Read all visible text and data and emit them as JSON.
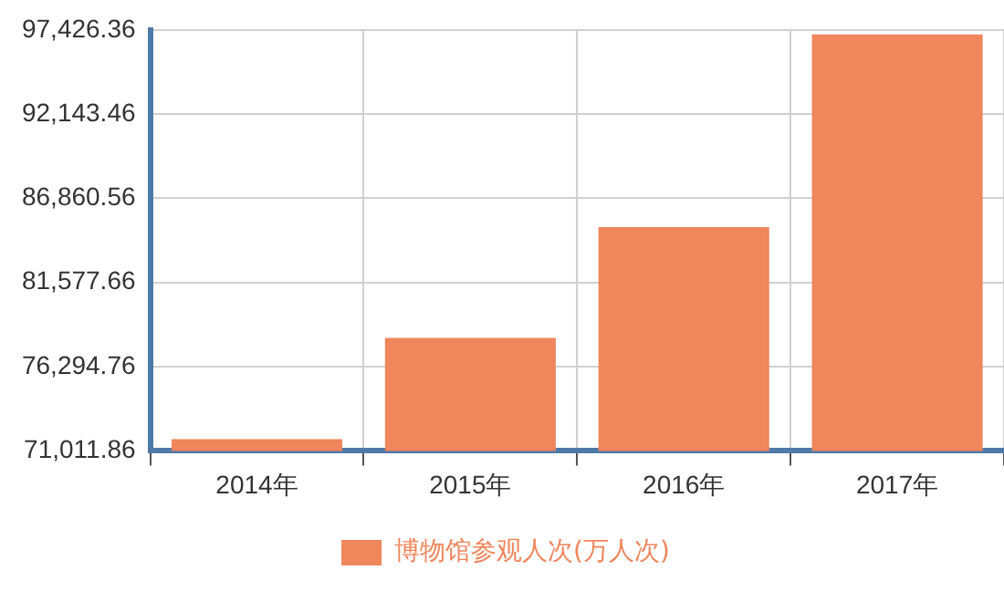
{
  "chart_data": {
    "type": "bar",
    "categories": [
      "2014年",
      "2015年",
      "2016年",
      "2017年"
    ],
    "series": [
      {
        "name": "博物馆参观人次(万人次)",
        "color": "#ef865c",
        "values": [
          71750,
          78100,
          85050,
          97150
        ]
      }
    ],
    "ylim": [
      71011.86,
      97426.36
    ],
    "yticks": [
      {
        "value": 71011.86,
        "label": "71,011.86"
      },
      {
        "value": 76294.76,
        "label": "76,294.76"
      },
      {
        "value": 81577.66,
        "label": "81,577.66"
      },
      {
        "value": 86860.56,
        "label": "86,860.56"
      },
      {
        "value": 92143.46,
        "label": "92,143.46"
      },
      {
        "value": 97426.36,
        "label": "97,426.36"
      }
    ],
    "grid": true,
    "legend": "bottom"
  }
}
